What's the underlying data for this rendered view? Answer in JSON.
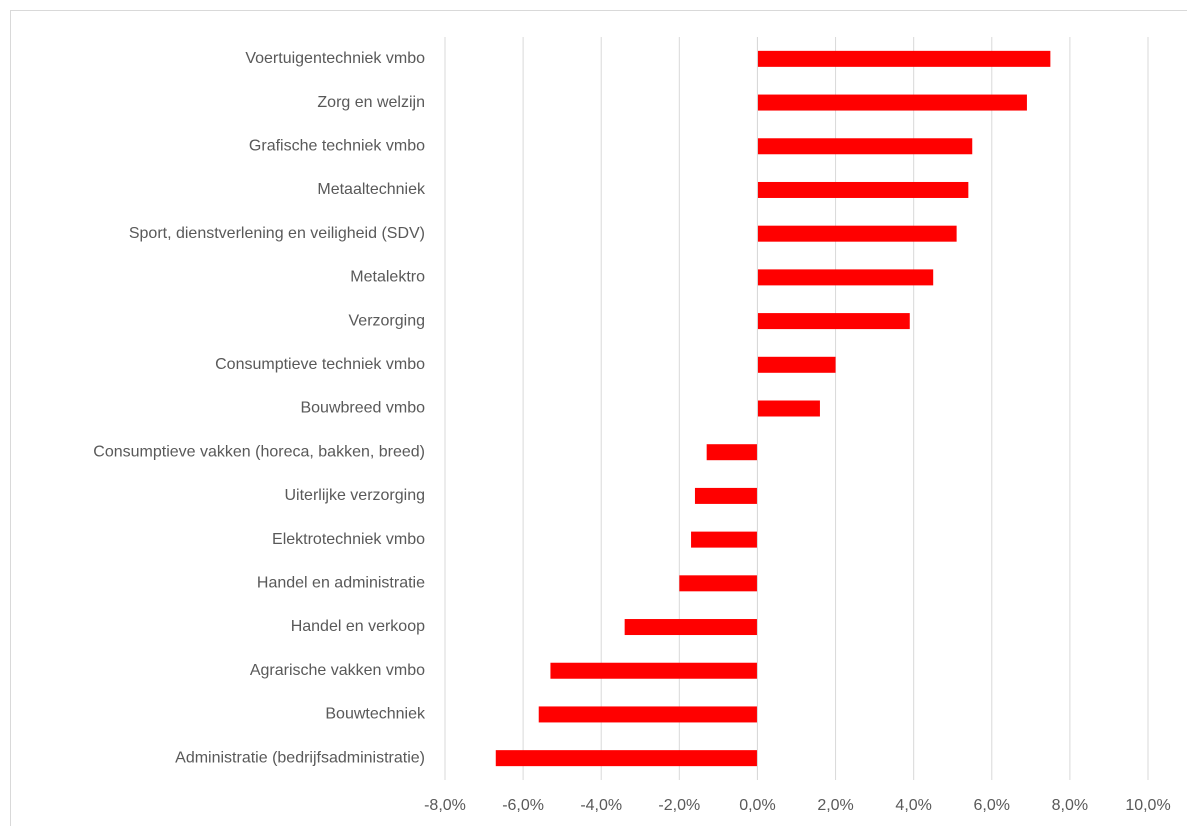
{
  "chart_data": {
    "type": "barh",
    "categories": [
      "Voertuigentechniek vmbo",
      "Zorg en welzijn",
      "Grafische techniek vmbo",
      "Metaaltechniek",
      "Sport, dienstverlening en veiligheid (SDV)",
      "Metalektro",
      "Verzorging",
      "Consumptieve techniek vmbo",
      "Bouwbreed vmbo",
      "Consumptieve vakken (horeca, bakken, breed)",
      "Uiterlijke verzorging",
      "Elektrotechniek vmbo",
      "Handel en administratie",
      "Handel en verkoop",
      "Agrarische vakken vmbo",
      "Bouwtechniek",
      "Administratie (bedrijfsadministratie)"
    ],
    "values": [
      7.5,
      6.9,
      5.5,
      5.4,
      5.1,
      4.5,
      3.9,
      2.0,
      1.6,
      -1.3,
      -1.6,
      -1.7,
      -2.0,
      -3.4,
      -5.3,
      -5.6,
      -6.7
    ],
    "color": "#ff0000",
    "xlim": [
      -8,
      10
    ],
    "xticks": [
      {
        "value": -8,
        "label": "-8,0%"
      },
      {
        "value": -6,
        "label": "-6,0%"
      },
      {
        "value": -4,
        "label": "-4,0%"
      },
      {
        "value": -2,
        "label": "-2,0%"
      },
      {
        "value": 0,
        "label": "0,0%"
      },
      {
        "value": 2,
        "label": "2,0%"
      },
      {
        "value": 4,
        "label": "4,0%"
      },
      {
        "value": 6,
        "label": "6,0%"
      },
      {
        "value": 8,
        "label": "8,0%"
      },
      {
        "value": 10,
        "label": "10,0%"
      }
    ],
    "grid": true
  }
}
